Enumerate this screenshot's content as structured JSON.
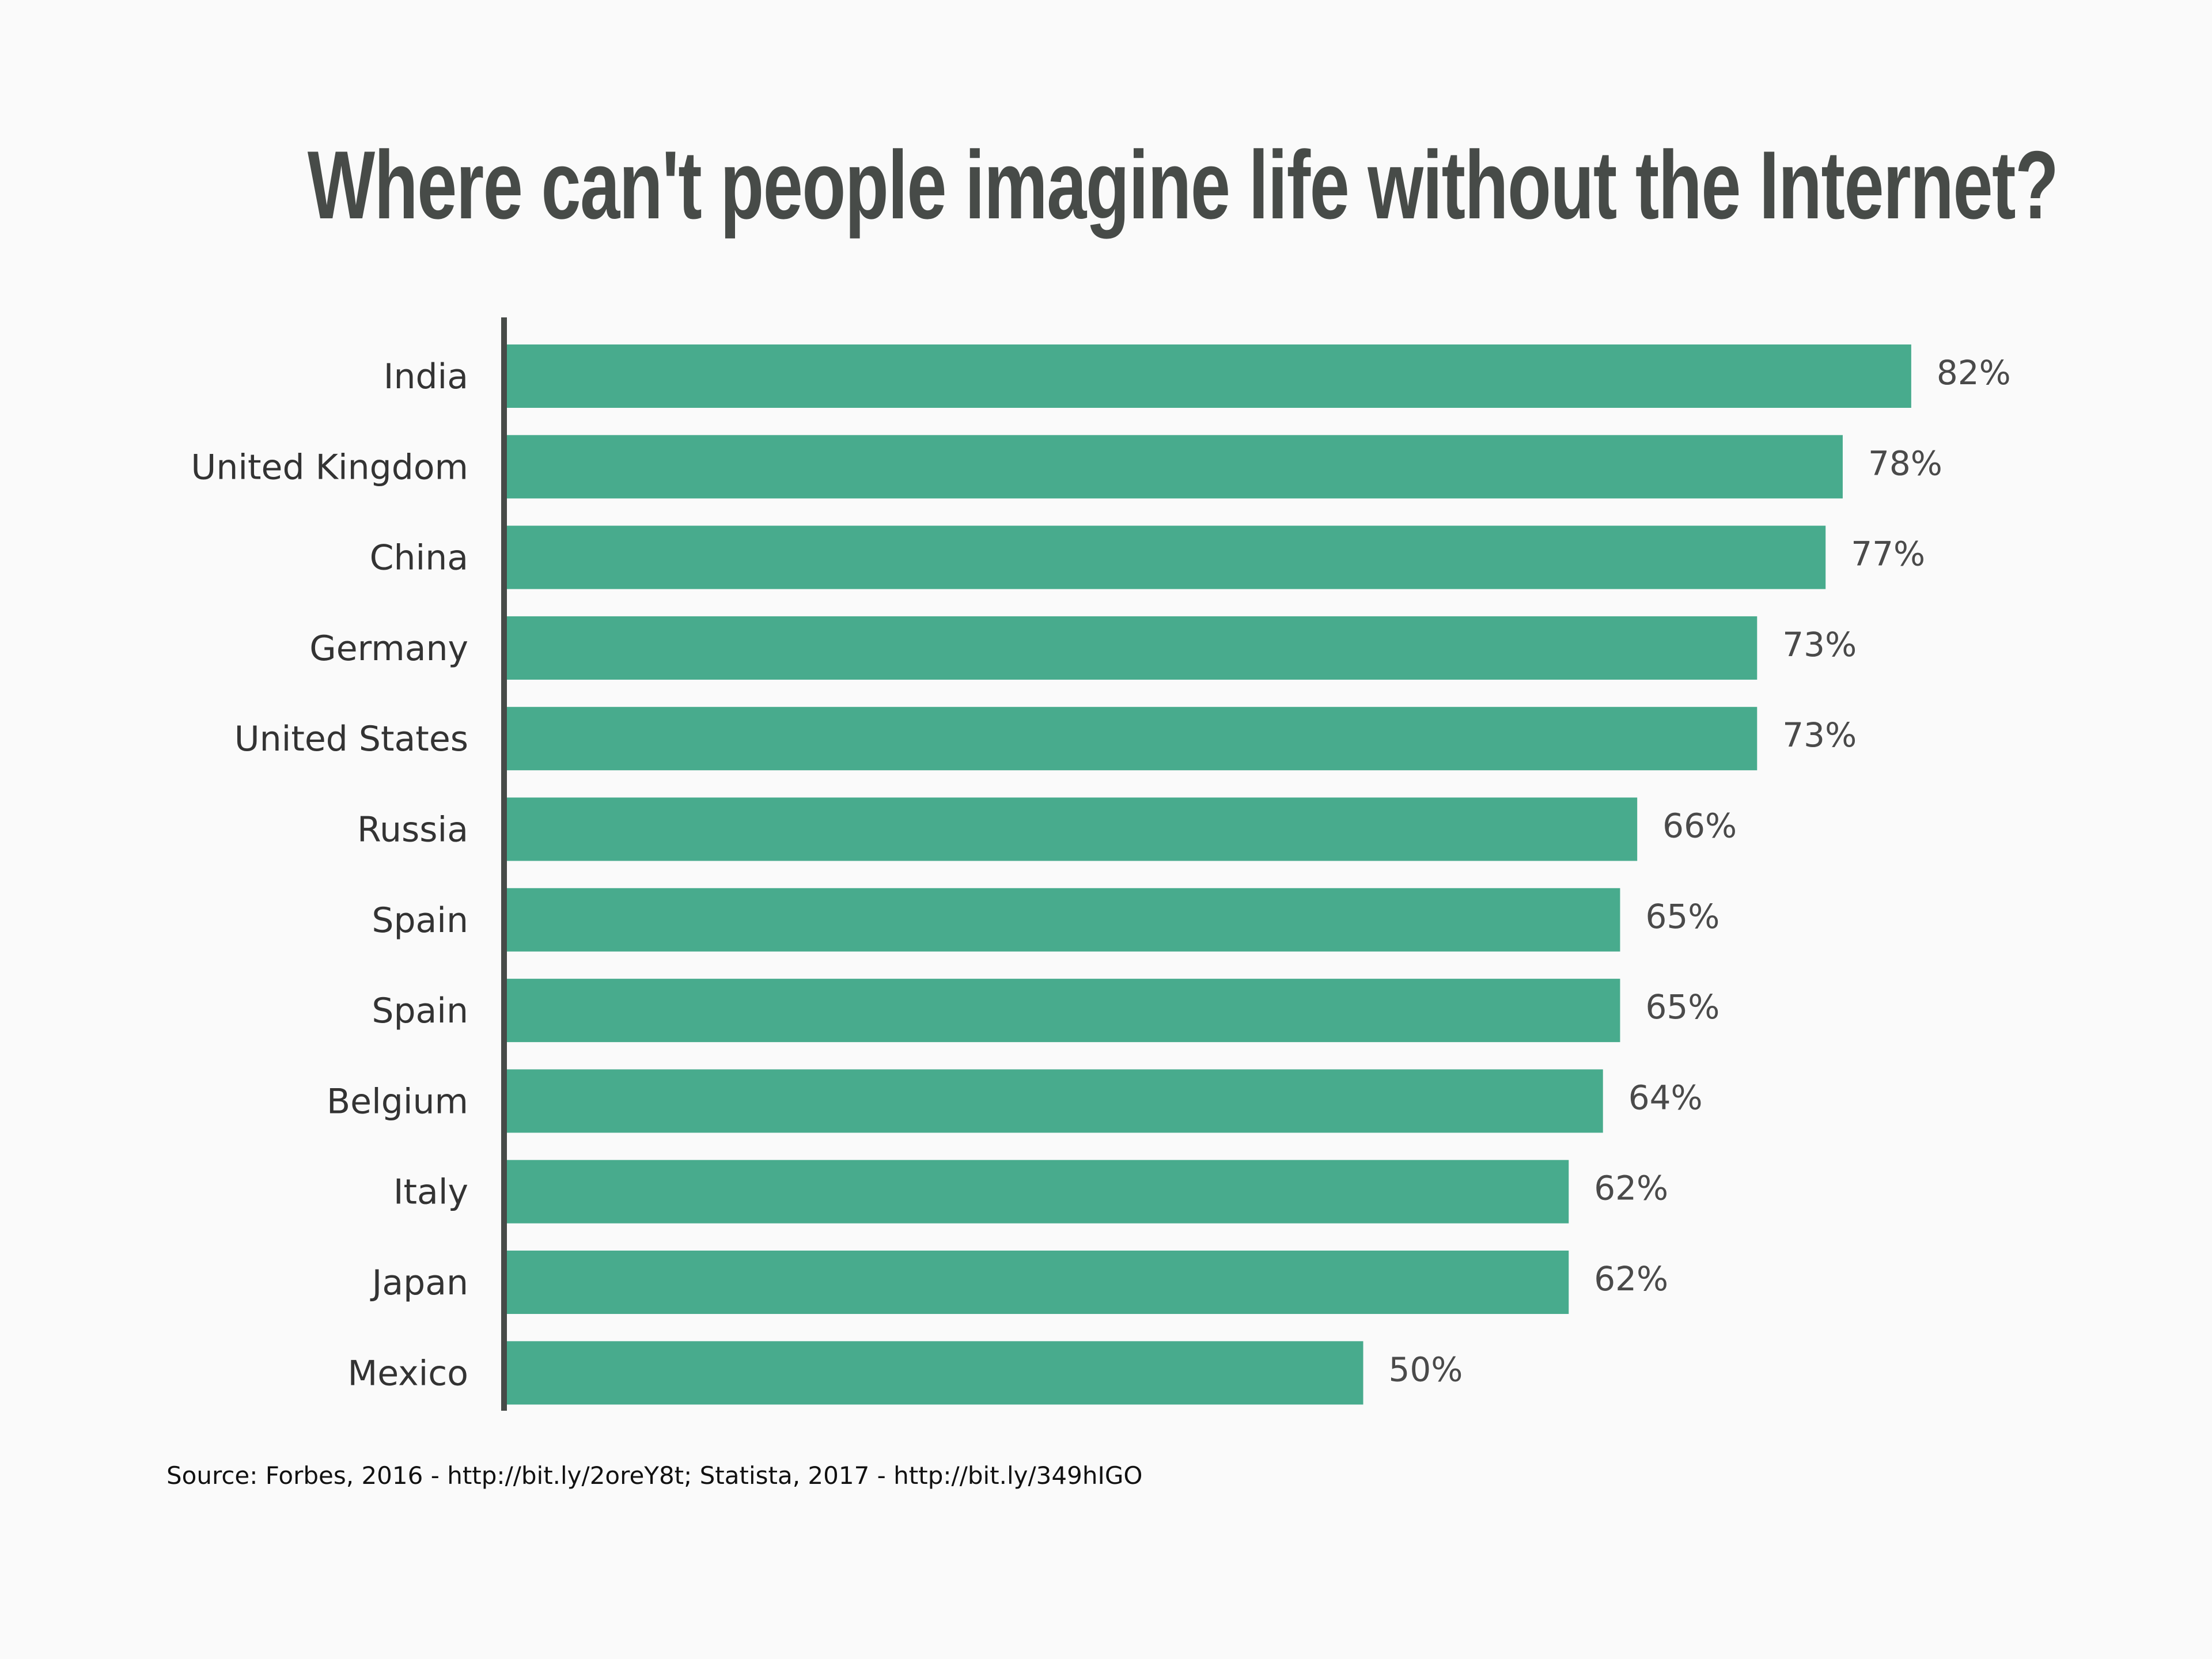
{
  "chart_data": {
    "type": "bar",
    "orientation": "horizontal",
    "title": "Where can't people imagine life without the Internet?",
    "categories": [
      "India",
      "United Kingdom",
      "China",
      "Germany",
      "United States",
      "Russia",
      "Spain",
      "Spain",
      "Belgium",
      "Italy",
      "Japan",
      "Mexico"
    ],
    "values": [
      82,
      78,
      77,
      73,
      73,
      66,
      65,
      65,
      64,
      62,
      62,
      50
    ],
    "data_labels": [
      "82%",
      "78%",
      "77%",
      "73%",
      "73%",
      "66%",
      "65%",
      "65%",
      "64%",
      "62%",
      "62%",
      "50%"
    ],
    "xlim": [
      0,
      100
    ],
    "grid": false,
    "legend": "none",
    "colors": {
      "bar": "#48ab8d",
      "axis": "#474b48",
      "text": "#333333",
      "background": "#fafafa"
    }
  },
  "source": "Source: Forbes, 2016 - http://bit.ly/2oreY8t; Statista, 2017 - http://bit.ly/349hIGO"
}
